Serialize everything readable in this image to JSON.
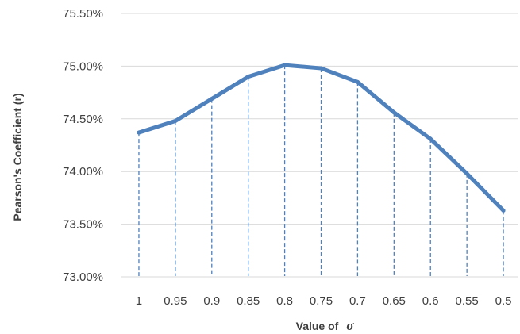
{
  "chart_data": {
    "type": "line",
    "title": "",
    "xlabel": "Value of",
    "xlabel_symbol": "σ",
    "ylabel": "Pearson's Coefficient (r)",
    "categories": [
      "1",
      "0.95",
      "0.9",
      "0.85",
      "0.8",
      "0.75",
      "0.7",
      "0.65",
      "0.6",
      "0.55",
      "0.5"
    ],
    "series": [
      {
        "values": [
          74.37,
          74.48,
          74.69,
          74.9,
          75.01,
          74.98,
          74.85,
          74.56,
          74.31,
          73.98,
          73.63
        ],
        "color": "#4f81bd"
      }
    ],
    "ylim": [
      73.0,
      75.5
    ],
    "yticks": [
      73.0,
      73.5,
      74.0,
      74.5,
      75.0,
      75.5
    ],
    "ytick_labels": [
      "73.00%",
      "73.50%",
      "74.00%",
      "74.50%",
      "75.00%",
      "75.50%"
    ],
    "grid": true,
    "drop_lines": true,
    "legend": "none",
    "gridline_color": "#d9d9d9",
    "dropline_color": "#4f81bd"
  }
}
